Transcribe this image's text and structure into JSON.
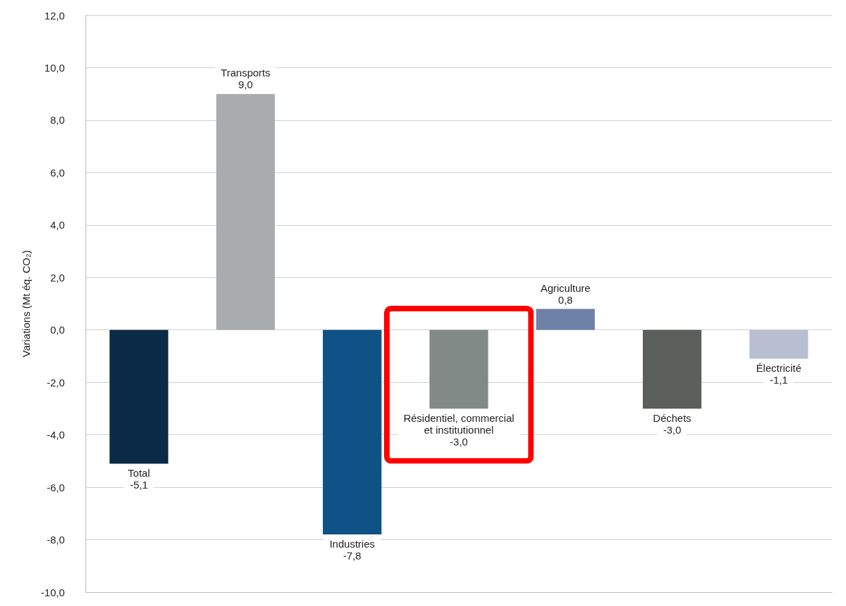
{
  "chart_data": {
    "type": "bar",
    "ylabel": "Variations (Mt éq. CO₂)",
    "categories": [
      "Total",
      "Transports",
      "Industries",
      "Résidentiel, commercial et institutionnel",
      "Agriculture",
      "Déchets",
      "Électricité"
    ],
    "values": [
      -5.1,
      9.0,
      -7.8,
      -3.0,
      0.8,
      -3.0,
      -1.1
    ],
    "colors": [
      "#0b2a45",
      "#a9acaf",
      "#0f5286",
      "#828a87",
      "#6e82a8",
      "#5a5f5c",
      "#b8bfd3"
    ],
    "value_labels": [
      "-5,1",
      "9,0",
      "-7,8",
      "-3,0",
      "0,8",
      "-3,0",
      "-1,1"
    ],
    "ylim": [
      -10,
      12
    ],
    "yticks": [
      {
        "value": -10,
        "label": "-10,0"
      },
      {
        "value": -8,
        "label": "-8,0"
      },
      {
        "value": -6,
        "label": "-6,0"
      },
      {
        "value": -4,
        "label": "-4,0"
      },
      {
        "value": -2,
        "label": "-2,0"
      },
      {
        "value": 0,
        "label": "0,0"
      },
      {
        "value": 2,
        "label": "2,0"
      },
      {
        "value": 4,
        "label": "4,0"
      },
      {
        "value": 6,
        "label": "6,0"
      },
      {
        "value": 8,
        "label": "8,0"
      },
      {
        "value": 10,
        "label": "10,0"
      },
      {
        "value": 12,
        "label": "12,0"
      }
    ],
    "grid": "y",
    "tick_labels": "y"
  }
}
